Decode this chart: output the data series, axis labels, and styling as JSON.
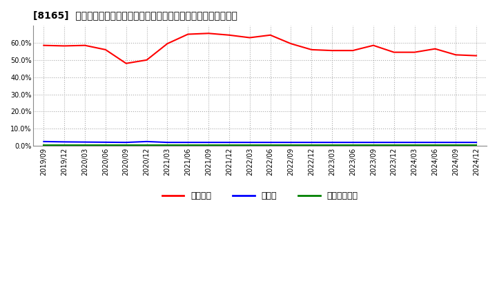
{
  "title": "[8165]  自己資本、のれん、繰延税金資産の総資産に対する比率の推移",
  "x_labels": [
    "2019/09",
    "2019/12",
    "2020/03",
    "2020/06",
    "2020/09",
    "2020/12",
    "2021/03",
    "2021/06",
    "2021/09",
    "2021/12",
    "2022/03",
    "2022/06",
    "2022/09",
    "2022/12",
    "2023/03",
    "2023/06",
    "2023/09",
    "2023/12",
    "2024/03",
    "2024/06",
    "2024/09",
    "2024/12"
  ],
  "equity_ratio": [
    58.5,
    58.2,
    58.5,
    56.0,
    48.0,
    50.0,
    59.5,
    65.0,
    65.5,
    64.5,
    63.0,
    64.5,
    59.5,
    56.0,
    55.5,
    55.5,
    58.5,
    54.5,
    54.5,
    56.5,
    53.0,
    52.5
  ],
  "noren_ratio": [
    2.5,
    2.3,
    2.2,
    2.1,
    2.0,
    2.5,
    2.0,
    2.0,
    2.0,
    2.0,
    2.0,
    2.0,
    2.0,
    2.0,
    2.0,
    2.0,
    2.0,
    2.0,
    2.0,
    2.0,
    2.0,
    2.0
  ],
  "deferred_tax_ratio": [
    0.3,
    0.3,
    0.3,
    0.3,
    0.3,
    0.3,
    0.3,
    0.3,
    0.3,
    0.3,
    0.3,
    0.3,
    0.3,
    0.3,
    0.3,
    0.3,
    0.3,
    0.3,
    0.3,
    0.3,
    0.3,
    0.3
  ],
  "equity_color": "#ff0000",
  "noren_color": "#0000ff",
  "deferred_color": "#008000",
  "bg_color": "#ffffff",
  "plot_bg_color": "#ffffff",
  "grid_color": "#aaaaaa",
  "ylim": [
    0,
    70
  ],
  "yticks": [
    0,
    10,
    20,
    30,
    40,
    50,
    60
  ],
  "legend_labels": [
    "自己資本",
    "のれん",
    "繰延税金資産"
  ]
}
